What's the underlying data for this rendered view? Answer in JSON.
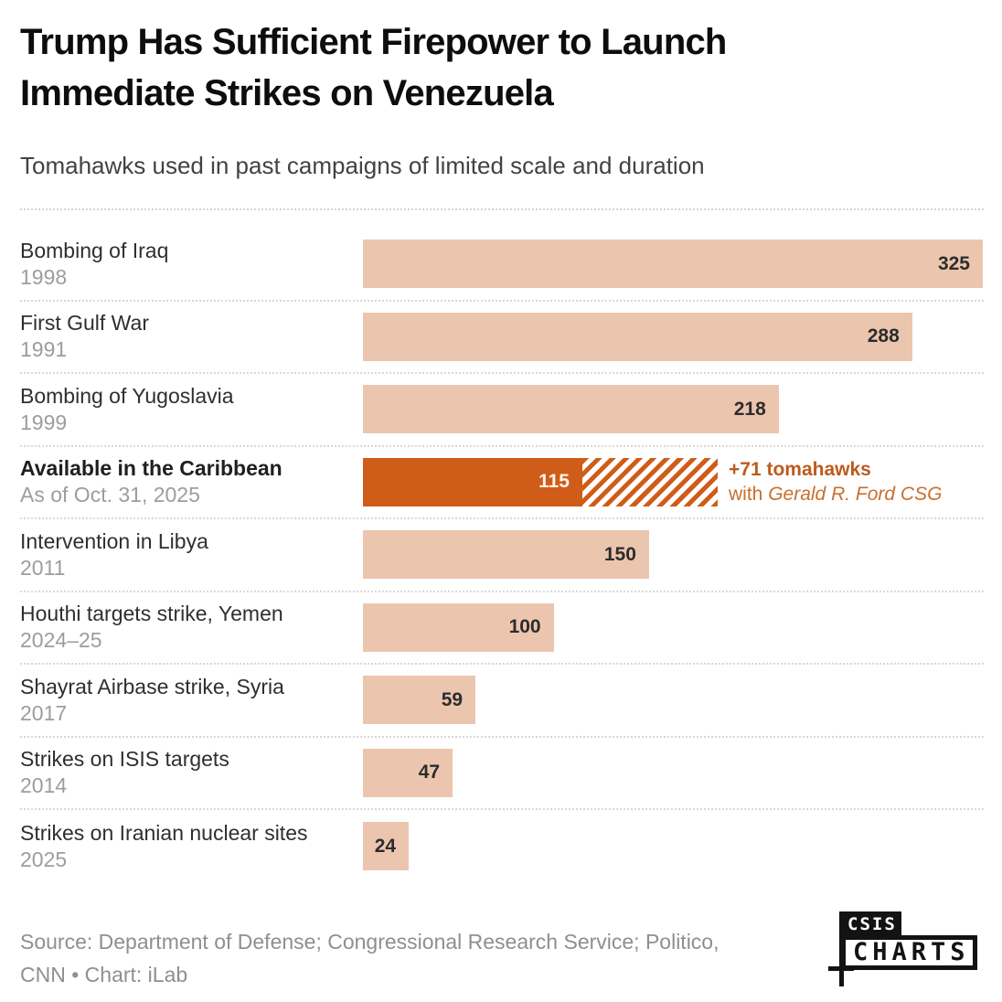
{
  "header": {
    "title_lines": [
      "Trump Has Sufficient Firepower to Launch",
      "Immediate Strikes on Venezuela"
    ],
    "subtitle": "Tomahawks used in past campaigns of limited scale and duration"
  },
  "chart_data": {
    "type": "bar",
    "orientation": "horizontal",
    "title": "Trump Has Sufficient Firepower to Launch Immediate Strikes on Venezuela",
    "subtitle": "Tomahawks used in past campaigns of limited scale and duration",
    "xlim": [
      0,
      325
    ],
    "grid": false,
    "rows": [
      {
        "label": "Bombing of Iraq",
        "year": "1998",
        "value": 325
      },
      {
        "label": "First Gulf War",
        "year": "1991",
        "value": 288
      },
      {
        "label": "Bombing of Yugoslavia",
        "year": "1999",
        "value": 218
      },
      {
        "label": "Available in the Caribbean",
        "year": "As of Oct. 31, 2025",
        "value": 115,
        "highlight": true,
        "extension": {
          "value": 71,
          "note_bold": "+71 tomahawks",
          "note_regular_prefix": "with ",
          "note_italic": "Gerald R. Ford CSG"
        }
      },
      {
        "label": "Intervention in Libya",
        "year": "2011",
        "value": 150
      },
      {
        "label": "Houthi targets strike, Yemen",
        "year": "2024–25",
        "value": 100
      },
      {
        "label": "Shayrat Airbase strike, Syria",
        "year": "2017",
        "value": 59
      },
      {
        "label": "Strikes on ISIS targets",
        "year": "2014",
        "value": 47
      },
      {
        "label": "Strikes on Iranian nuclear sites",
        "year": "2025",
        "value": 24
      }
    ],
    "colors": {
      "bar": "#ecc5ae",
      "highlight_bar": "#cf5c18",
      "value_label": "#2c2c2c",
      "highlight_value_label": "#fcf5ec",
      "annotation_bold": "#bd5a1e",
      "annotation_regular": "#c8702f"
    }
  },
  "footer": {
    "source_lines": [
      "Source: Department of Defense; Congressional Research Service; Politico,",
      "CNN • Chart: iLab"
    ],
    "logo": {
      "top": "CSIS",
      "bottom": "CHARTS"
    }
  }
}
